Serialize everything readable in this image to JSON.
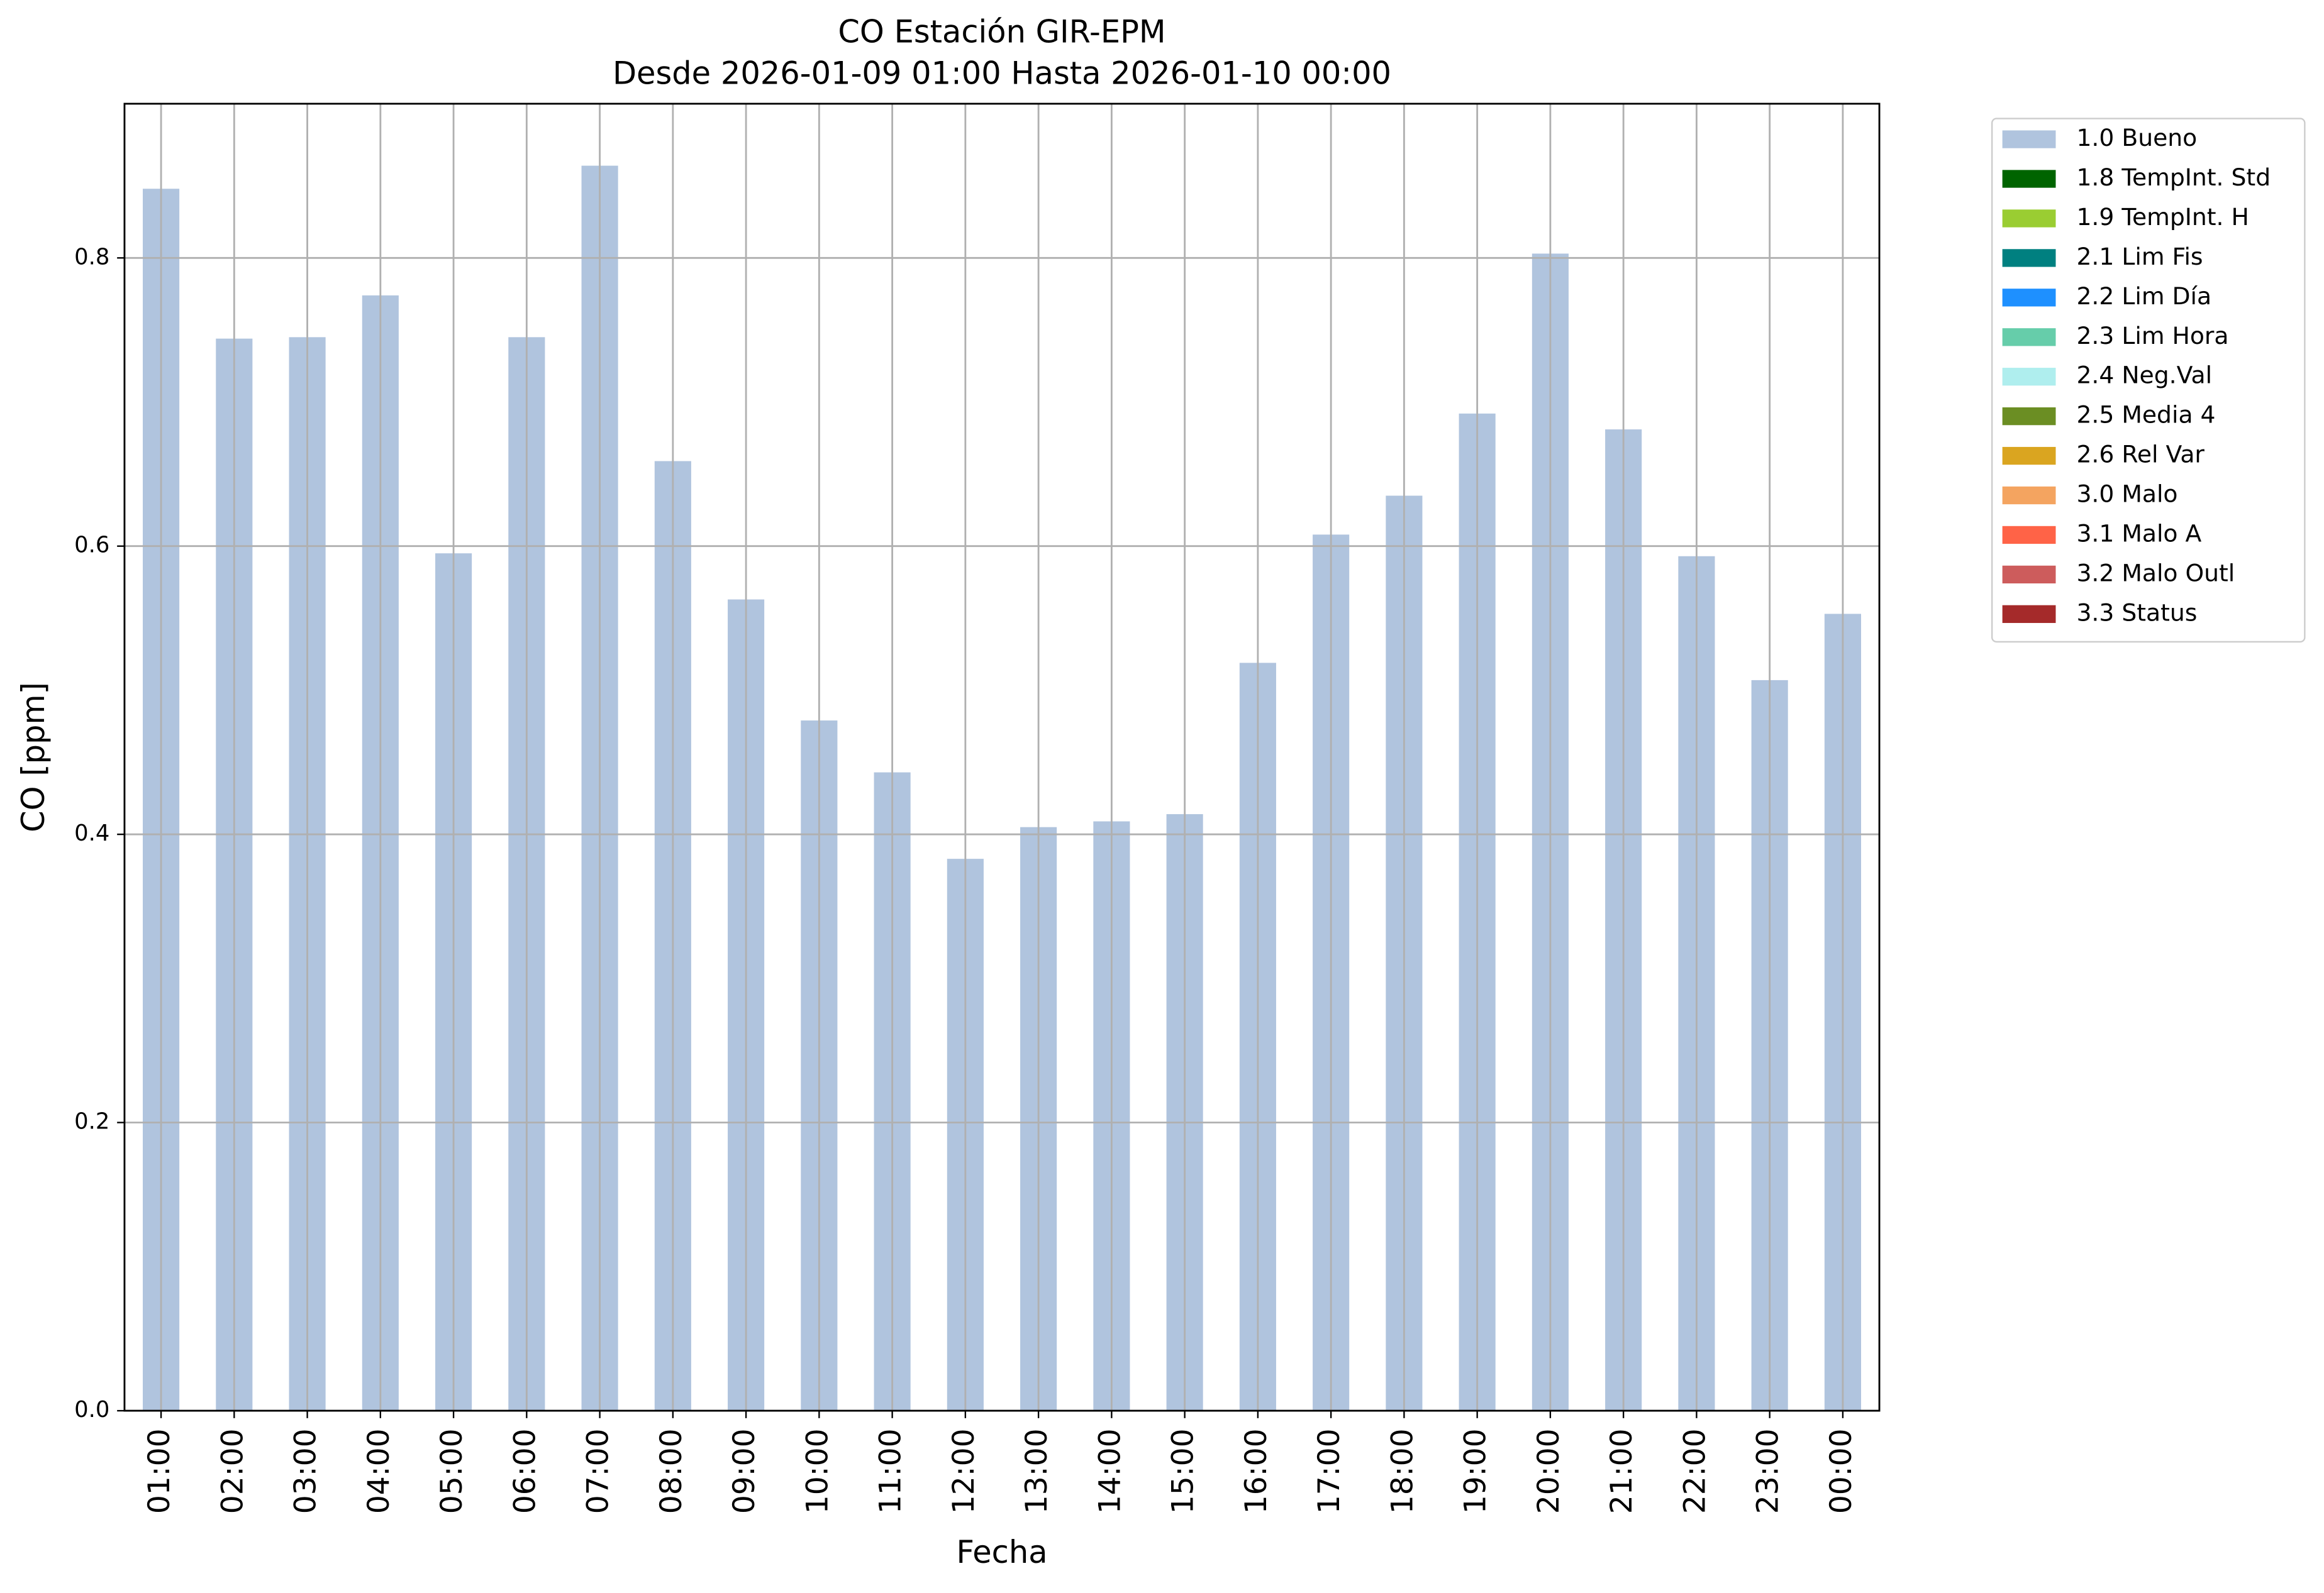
{
  "chart_data": {
    "type": "stacked_bar",
    "title": "CO Estación GIR-EPM",
    "subtitle": "Desde 2026-01-09 01:00 Hasta 2026-01-10 00:00",
    "x_label": "Fecha",
    "y_label": "CO [ppm]",
    "categories": [
      "01:00",
      "02:00",
      "03:00",
      "04:00",
      "05:00",
      "06:00",
      "07:00",
      "08:00",
      "09:00",
      "10:00",
      "11:00",
      "12:00",
      "13:00",
      "14:00",
      "15:00",
      "16:00",
      "17:00",
      "18:00",
      "19:00",
      "20:00",
      "21:00",
      "22:00",
      "23:00",
      "00:00"
    ],
    "series": [
      {
        "name": "1.0 Bueno",
        "color": "#b0c4de",
        "values": [
          0.848,
          0.744,
          0.745,
          0.774,
          0.595,
          0.745,
          0.864,
          0.659,
          0.563,
          0.479,
          0.443,
          0.383,
          0.405,
          0.409,
          0.414,
          0.519,
          0.608,
          0.635,
          0.692,
          0.803,
          0.681,
          0.593,
          0.507,
          0.553
        ]
      },
      {
        "name": "1.8 TempInt. Std",
        "color": "#006400",
        "values": [
          0,
          0,
          0,
          0,
          0,
          0,
          0,
          0,
          0,
          0,
          0,
          0,
          0,
          0,
          0,
          0,
          0,
          0,
          0,
          0,
          0,
          0,
          0,
          0
        ]
      },
      {
        "name": "1.9 TempInt. H",
        "color": "#9acd32",
        "values": [
          0,
          0,
          0,
          0,
          0,
          0,
          0,
          0,
          0,
          0,
          0,
          0,
          0,
          0,
          0,
          0,
          0,
          0,
          0,
          0,
          0,
          0,
          0,
          0
        ]
      },
      {
        "name": "2.1 Lim Fis",
        "color": "#008080",
        "values": [
          0,
          0,
          0,
          0,
          0,
          0,
          0,
          0,
          0,
          0,
          0,
          0,
          0,
          0,
          0,
          0,
          0,
          0,
          0,
          0,
          0,
          0,
          0,
          0
        ]
      },
      {
        "name": "2.2 Lim Día",
        "color": "#1e90ff",
        "values": [
          0,
          0,
          0,
          0,
          0,
          0,
          0,
          0,
          0,
          0,
          0,
          0,
          0,
          0,
          0,
          0,
          0,
          0,
          0,
          0,
          0,
          0,
          0,
          0
        ]
      },
      {
        "name": "2.3 Lim Hora",
        "color": "#66cdaa",
        "values": [
          0,
          0,
          0,
          0,
          0,
          0,
          0,
          0,
          0,
          0,
          0,
          0,
          0,
          0,
          0,
          0,
          0,
          0,
          0,
          0,
          0,
          0,
          0,
          0
        ]
      },
      {
        "name": "2.4 Neg.Val",
        "color": "#afeeee",
        "values": [
          0,
          0,
          0,
          0,
          0,
          0,
          0,
          0,
          0,
          0,
          0,
          0,
          0,
          0,
          0,
          0,
          0,
          0,
          0,
          0,
          0,
          0,
          0,
          0
        ]
      },
      {
        "name": "2.5 Media 4",
        "color": "#6b8e23",
        "values": [
          0,
          0,
          0,
          0,
          0,
          0,
          0,
          0,
          0,
          0,
          0,
          0,
          0,
          0,
          0,
          0,
          0,
          0,
          0,
          0,
          0,
          0,
          0,
          0
        ]
      },
      {
        "name": "2.6 Rel Var",
        "color": "#daa520",
        "values": [
          0,
          0,
          0,
          0,
          0,
          0,
          0,
          0,
          0,
          0,
          0,
          0,
          0,
          0,
          0,
          0,
          0,
          0,
          0,
          0,
          0,
          0,
          0,
          0
        ]
      },
      {
        "name": "3.0 Malo",
        "color": "#f4a460",
        "values": [
          0,
          0,
          0,
          0,
          0,
          0,
          0,
          0,
          0,
          0,
          0,
          0,
          0,
          0,
          0,
          0,
          0,
          0,
          0,
          0,
          0,
          0,
          0,
          0
        ]
      },
      {
        "name": "3.1 Malo A",
        "color": "#ff6347",
        "values": [
          0,
          0,
          0,
          0,
          0,
          0,
          0,
          0,
          0,
          0,
          0,
          0,
          0,
          0,
          0,
          0,
          0,
          0,
          0,
          0,
          0,
          0,
          0,
          0
        ]
      },
      {
        "name": "3.2 Malo Outl",
        "color": "#cd5c5c",
        "values": [
          0,
          0,
          0,
          0,
          0,
          0,
          0,
          0,
          0,
          0,
          0,
          0,
          0,
          0,
          0,
          0,
          0,
          0,
          0,
          0,
          0,
          0,
          0,
          0
        ]
      },
      {
        "name": "3.3 Status",
        "color": "#a52a2a",
        "values": [
          0,
          0,
          0,
          0,
          0,
          0,
          0,
          0,
          0,
          0,
          0,
          0,
          0,
          0,
          0,
          0,
          0,
          0,
          0,
          0,
          0,
          0,
          0,
          0
        ]
      }
    ],
    "ylim": [
      0,
      0.907
    ],
    "yticks": [
      {
        "value": 0,
        "label": "0.0"
      },
      0.2,
      0.4,
      0.6,
      0.8
    ],
    "grid": true,
    "legend": "outside-right"
  }
}
